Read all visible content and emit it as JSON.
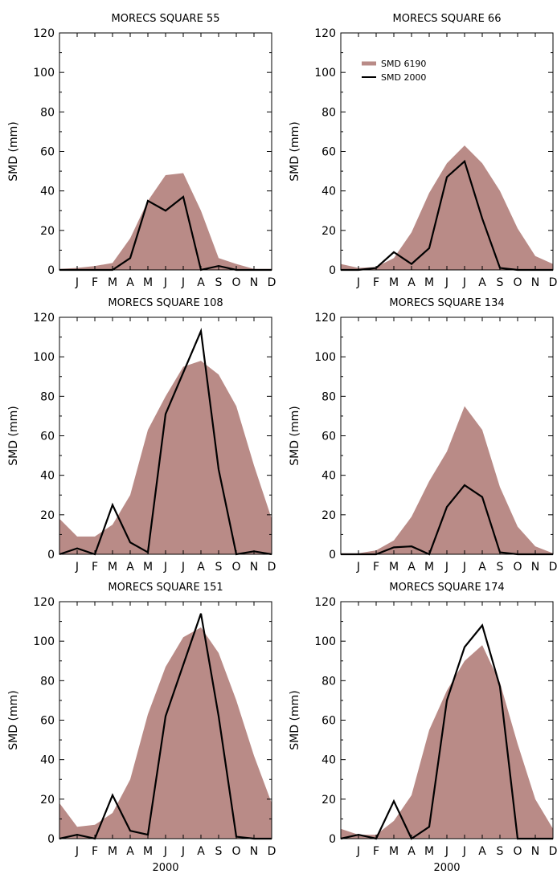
{
  "colors": {
    "area": "#b98b87",
    "line": "#000000"
  },
  "chart_data": [
    {
      "type": "area",
      "title": "MORECS SQUARE 55",
      "ylabel": "SMD (mm)",
      "xlabel": "",
      "ylim": [
        0,
        120
      ],
      "yticks": [
        0,
        20,
        40,
        60,
        80,
        100,
        120
      ],
      "months": [
        "J",
        "F",
        "M",
        "A",
        "M",
        "J",
        "J",
        "A",
        "S",
        "O",
        "N",
        "D"
      ],
      "x": [
        0,
        1,
        2,
        3,
        4,
        5,
        6,
        7,
        8,
        9,
        10,
        11,
        12
      ],
      "series": [
        {
          "name": "",
          "kind": "area",
          "values": [
            0.5,
            1,
            2,
            3.5,
            16,
            35,
            48,
            49,
            30,
            6,
            3,
            0.5,
            0.5
          ]
        },
        {
          "name": "",
          "kind": "line",
          "values": [
            0,
            0,
            0,
            0,
            6,
            35,
            30,
            37,
            0,
            2,
            0,
            0,
            0
          ]
        }
      ]
    },
    {
      "type": "area",
      "title": "MORECS SQUARE 66",
      "ylabel": "SMD (mm)",
      "xlabel": "",
      "ylim": [
        0,
        120
      ],
      "yticks": [
        0,
        20,
        40,
        60,
        80,
        100,
        120
      ],
      "months": [
        "J",
        "F",
        "M",
        "A",
        "M",
        "J",
        "J",
        "A",
        "S",
        "O",
        "N",
        "D"
      ],
      "x": [
        0,
        1,
        2,
        3,
        4,
        5,
        6,
        7,
        8,
        9,
        10,
        11,
        12
      ],
      "legend": {
        "position": "top-left",
        "entries": [
          "SMD 6190",
          "SMD 2000"
        ]
      },
      "series": [
        {
          "name": "SMD 6190",
          "kind": "area",
          "values": [
            3,
            1,
            1.5,
            6,
            19,
            39,
            54,
            63,
            54,
            40,
            21,
            7,
            3
          ]
        },
        {
          "name": "SMD 2000",
          "kind": "line",
          "values": [
            0,
            0,
            1,
            9,
            3,
            11,
            47,
            55,
            26,
            1,
            0,
            0,
            0
          ]
        }
      ]
    },
    {
      "type": "area",
      "title": "MORECS SQUARE 108",
      "ylabel": "SMD (mm)",
      "xlabel": "",
      "ylim": [
        0,
        120
      ],
      "yticks": [
        0,
        20,
        40,
        60,
        80,
        100,
        120
      ],
      "months": [
        "J",
        "F",
        "M",
        "A",
        "M",
        "J",
        "J",
        "A",
        "S",
        "O",
        "N",
        "D"
      ],
      "x": [
        0,
        1,
        2,
        3,
        4,
        5,
        6,
        7,
        8,
        9,
        10,
        11,
        12
      ],
      "series": [
        {
          "name": "",
          "kind": "area",
          "values": [
            18,
            9,
            9,
            15,
            30,
            63,
            80,
            95,
            98,
            91,
            75,
            45,
            18
          ]
        },
        {
          "name": "",
          "kind": "line",
          "values": [
            0,
            3,
            0,
            25,
            6,
            1,
            71,
            92,
            113,
            43,
            0,
            1.5,
            0
          ]
        }
      ]
    },
    {
      "type": "area",
      "title": "MORECS SQUARE 134",
      "ylabel": "SMD (mm)",
      "xlabel": "",
      "ylim": [
        0,
        120
      ],
      "yticks": [
        0,
        20,
        40,
        60,
        80,
        100,
        120
      ],
      "months": [
        "J",
        "F",
        "M",
        "A",
        "M",
        "J",
        "J",
        "A",
        "S",
        "O",
        "N",
        "D"
      ],
      "x": [
        0,
        1,
        2,
        3,
        4,
        5,
        6,
        7,
        8,
        9,
        10,
        11,
        12
      ],
      "series": [
        {
          "name": "",
          "kind": "area",
          "values": [
            0.5,
            0.5,
            2,
            7,
            19,
            37,
            52,
            75,
            63,
            34,
            14,
            4,
            0.5
          ]
        },
        {
          "name": "",
          "kind": "line",
          "values": [
            0,
            0,
            0,
            3.5,
            4,
            0,
            24,
            35,
            29,
            1,
            0,
            0,
            0
          ]
        }
      ]
    },
    {
      "type": "area",
      "title": "MORECS SQUARE 151",
      "ylabel": "SMD (mm)",
      "xlabel": "2000",
      "ylim": [
        0,
        120
      ],
      "yticks": [
        0,
        20,
        40,
        60,
        80,
        100,
        120
      ],
      "months": [
        "J",
        "F",
        "M",
        "A",
        "M",
        "J",
        "J",
        "A",
        "S",
        "O",
        "N",
        "D"
      ],
      "x": [
        0,
        1,
        2,
        3,
        4,
        5,
        6,
        7,
        8,
        9,
        10,
        11,
        12
      ],
      "series": [
        {
          "name": "",
          "kind": "area",
          "values": [
            18,
            6,
            7,
            13,
            30,
            63,
            87,
            102,
            107,
            94,
            70,
            42,
            18
          ]
        },
        {
          "name": "",
          "kind": "line",
          "values": [
            0,
            2,
            0,
            22,
            4,
            2,
            62,
            88,
            114,
            62,
            1,
            0,
            0
          ]
        }
      ]
    },
    {
      "type": "area",
      "title": "MORECS SQUARE 174",
      "ylabel": "SMD (mm)",
      "xlabel": "2000",
      "ylim": [
        0,
        120
      ],
      "yticks": [
        0,
        20,
        40,
        60,
        80,
        100,
        120
      ],
      "months": [
        "J",
        "F",
        "M",
        "A",
        "M",
        "J",
        "J",
        "A",
        "S",
        "O",
        "N",
        "D"
      ],
      "x": [
        0,
        1,
        2,
        3,
        4,
        5,
        6,
        7,
        8,
        9,
        10,
        11,
        12
      ],
      "series": [
        {
          "name": "",
          "kind": "area",
          "values": [
            5,
            2,
            2,
            9,
            22,
            55,
            75,
            90,
            98,
            79,
            48,
            20,
            5
          ]
        },
        {
          "name": "",
          "kind": "line",
          "values": [
            0,
            2,
            0,
            19,
            0,
            6,
            70,
            97,
            108,
            77,
            0,
            0,
            0
          ]
        }
      ]
    }
  ]
}
